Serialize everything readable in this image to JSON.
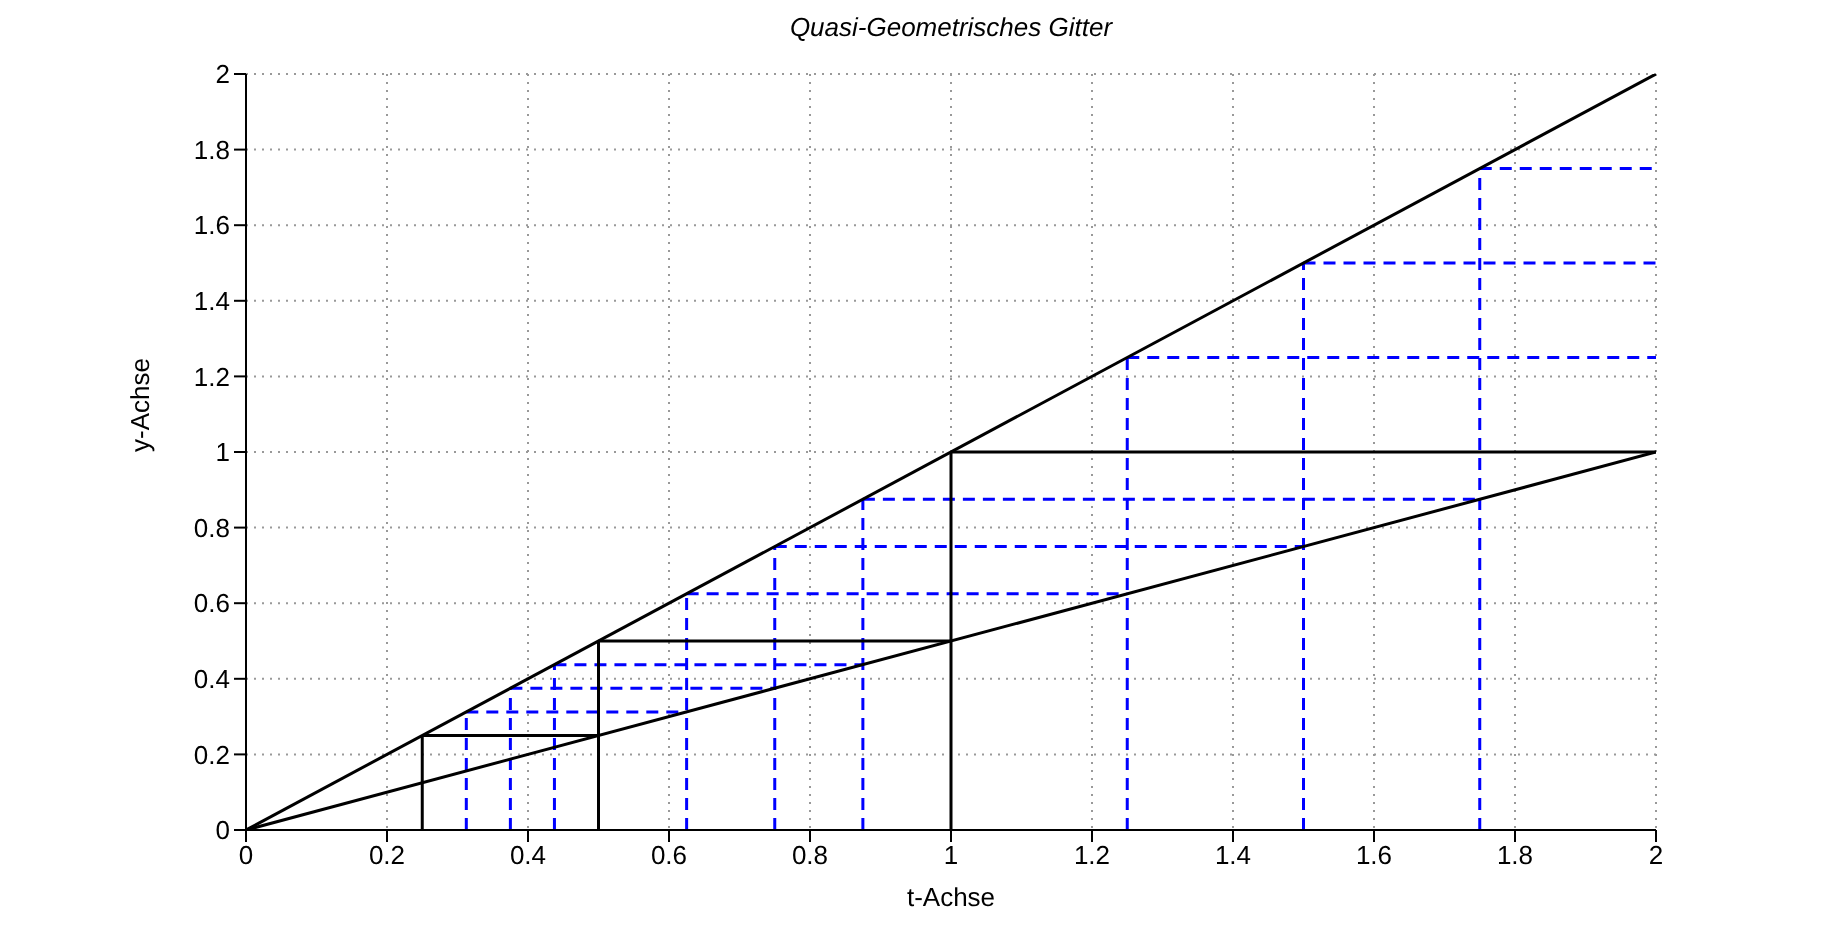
{
  "chart_data": {
    "type": "line",
    "title": "Quasi-Geometrisches Gitter",
    "xlabel": "t-Achse",
    "ylabel": "y-Achse",
    "xlim": [
      0,
      2
    ],
    "ylim": [
      0,
      2
    ],
    "xticks": [
      0,
      0.2,
      0.4,
      0.6,
      0.8,
      1,
      1.2,
      1.4,
      1.6,
      1.8,
      2
    ],
    "yticks": [
      0,
      0.2,
      0.4,
      0.6,
      0.8,
      1,
      1.2,
      1.4,
      1.6,
      1.8,
      2
    ],
    "grid": true,
    "marker": "none",
    "series": [
      {
        "color": "#0000ff",
        "line_style": "dashed",
        "x": [
          0.3125,
          0.3125
        ],
        "values": [
          0,
          0.3125
        ]
      },
      {
        "color": "#0000ff",
        "line_style": "dashed",
        "x": [
          0.375,
          0.375
        ],
        "values": [
          0,
          0.375
        ]
      },
      {
        "color": "#0000ff",
        "line_style": "dashed",
        "x": [
          0.4375,
          0.4375
        ],
        "values": [
          0,
          0.4375
        ]
      },
      {
        "color": "#0000ff",
        "line_style": "dashed",
        "x": [
          0.625,
          0.625
        ],
        "values": [
          0,
          0.625
        ]
      },
      {
        "color": "#0000ff",
        "line_style": "dashed",
        "x": [
          0.75,
          0.75
        ],
        "values": [
          0,
          0.75
        ]
      },
      {
        "color": "#0000ff",
        "line_style": "dashed",
        "x": [
          0.875,
          0.875
        ],
        "values": [
          0,
          0.875
        ]
      },
      {
        "color": "#0000ff",
        "line_style": "dashed",
        "x": [
          1.25,
          1.25
        ],
        "values": [
          0,
          1.25
        ]
      },
      {
        "color": "#0000ff",
        "line_style": "dashed",
        "x": [
          1.5,
          1.5
        ],
        "values": [
          0,
          1.5
        ]
      },
      {
        "color": "#0000ff",
        "line_style": "dashed",
        "x": [
          1.75,
          1.75
        ],
        "values": [
          0,
          1.75
        ]
      },
      {
        "color": "#0000ff",
        "line_style": "dashed",
        "x": [
          0.3125,
          0.625
        ],
        "values": [
          0.3125,
          0.3125
        ]
      },
      {
        "color": "#0000ff",
        "line_style": "dashed",
        "x": [
          0.375,
          0.75
        ],
        "values": [
          0.375,
          0.375
        ]
      },
      {
        "color": "#0000ff",
        "line_style": "dashed",
        "x": [
          0.4375,
          0.875
        ],
        "values": [
          0.4375,
          0.4375
        ]
      },
      {
        "color": "#0000ff",
        "line_style": "dashed",
        "x": [
          0.625,
          1.25
        ],
        "values": [
          0.625,
          0.625
        ]
      },
      {
        "color": "#0000ff",
        "line_style": "dashed",
        "x": [
          0.75,
          1.5
        ],
        "values": [
          0.75,
          0.75
        ]
      },
      {
        "color": "#0000ff",
        "line_style": "dashed",
        "x": [
          0.875,
          1.75
        ],
        "values": [
          0.875,
          0.875
        ]
      },
      {
        "color": "#0000ff",
        "line_style": "dashed",
        "x": [
          1.25,
          2
        ],
        "values": [
          1.25,
          1.25
        ]
      },
      {
        "color": "#0000ff",
        "line_style": "dashed",
        "x": [
          1.5,
          2
        ],
        "values": [
          1.5,
          1.5
        ]
      },
      {
        "color": "#0000ff",
        "line_style": "dashed",
        "x": [
          1.75,
          2
        ],
        "values": [
          1.75,
          1.75
        ]
      },
      {
        "color": "#000000",
        "line_style": "solid",
        "x": [
          0,
          2
        ],
        "values": [
          0,
          2
        ]
      },
      {
        "color": "#000000",
        "line_style": "solid",
        "x": [
          0,
          2
        ],
        "values": [
          0,
          1
        ]
      },
      {
        "color": "#000000",
        "line_style": "solid",
        "x": [
          0.25,
          0.25
        ],
        "values": [
          0,
          0.25
        ]
      },
      {
        "color": "#000000",
        "line_style": "solid",
        "x": [
          0.5,
          0.5
        ],
        "values": [
          0,
          0.5
        ]
      },
      {
        "color": "#000000",
        "line_style": "solid",
        "x": [
          1,
          1
        ],
        "values": [
          0,
          1
        ]
      },
      {
        "color": "#000000",
        "line_style": "solid",
        "x": [
          0.25,
          0.5
        ],
        "values": [
          0.25,
          0.25
        ]
      },
      {
        "color": "#000000",
        "line_style": "solid",
        "x": [
          0.5,
          1
        ],
        "values": [
          0.5,
          0.5
        ]
      },
      {
        "color": "#000000",
        "line_style": "solid",
        "x": [
          1,
          2
        ],
        "values": [
          1,
          1
        ]
      }
    ]
  }
}
